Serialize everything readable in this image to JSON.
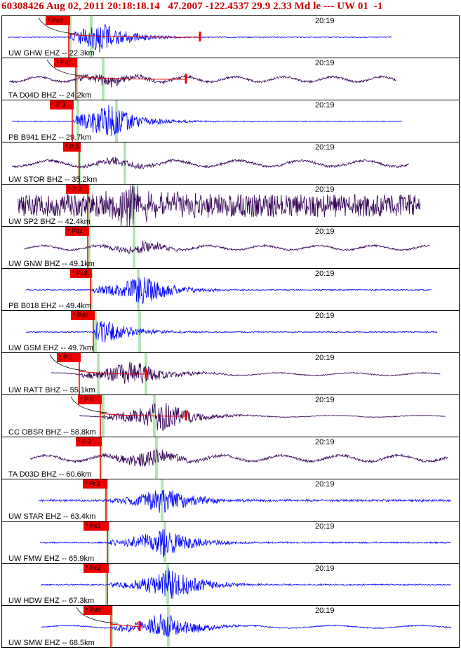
{
  "header": {
    "text": "60308426 Aug 02, 2011 20:18:18.14   47.2007 -122.4537 29.9 2.33 Md le --- UW 01  -1",
    "color": "#cc0000"
  },
  "time_mark": "20:19",
  "colors": {
    "blue": "#0000ff",
    "purple": "#330055",
    "pick": "#ee0000",
    "green": "#a8e0a8"
  },
  "traces": [
    {
      "label": "UW GHW EHZ -- 22.3km",
      "pick": "* Pc0",
      "color": "blue"
    },
    {
      "label": "TA D04D BHZ -- 24.2km",
      "pick": "* P 0",
      "color": "purple"
    },
    {
      "label": "PB B941 EHZ -- 29.7km",
      "pick": "* P 3",
      "color": "blue"
    },
    {
      "label": "UW STOR BHZ -- 35.2km",
      "pick": "* P 0",
      "color": "purple"
    },
    {
      "label": "UW SP2 BHZ -- 42.4km",
      "pick": "* P 2",
      "color": "purple"
    },
    {
      "label": "UW GNW BHZ -- 49.1km",
      "pick": "* Pd2",
      "color": "purple"
    },
    {
      "label": "PB B018 EHZ -- 49.4km",
      "pick": "* Pc3",
      "color": "blue"
    },
    {
      "label": "UW GSM EHZ -- 49.7km",
      "pick": "* Pd0",
      "color": "blue"
    },
    {
      "label": "UW RATT BHZ -- 55.1km",
      "pick": "* P 3",
      "color": "purple"
    },
    {
      "label": "CC OBSR BHZ -- 58.8km",
      "pick": "* P 0",
      "color": "purple"
    },
    {
      "label": "TA D03D BHZ -- 60.6km",
      "pick": "* P 2",
      "color": "purple"
    },
    {
      "label": "UW STAR EHZ -- 63.4km",
      "pick": "* Pc3",
      "color": "blue"
    },
    {
      "label": "UW FMW EHZ -- 65.9km",
      "pick": "* Pc3",
      "color": "blue"
    },
    {
      "label": "UW HDW EHZ -- 67.3km",
      "pick": "* Pc2",
      "color": "blue"
    },
    {
      "label": "UW SMW EHZ -- 68.5km",
      "pick": "* Pd0",
      "color": "blue"
    }
  ]
}
